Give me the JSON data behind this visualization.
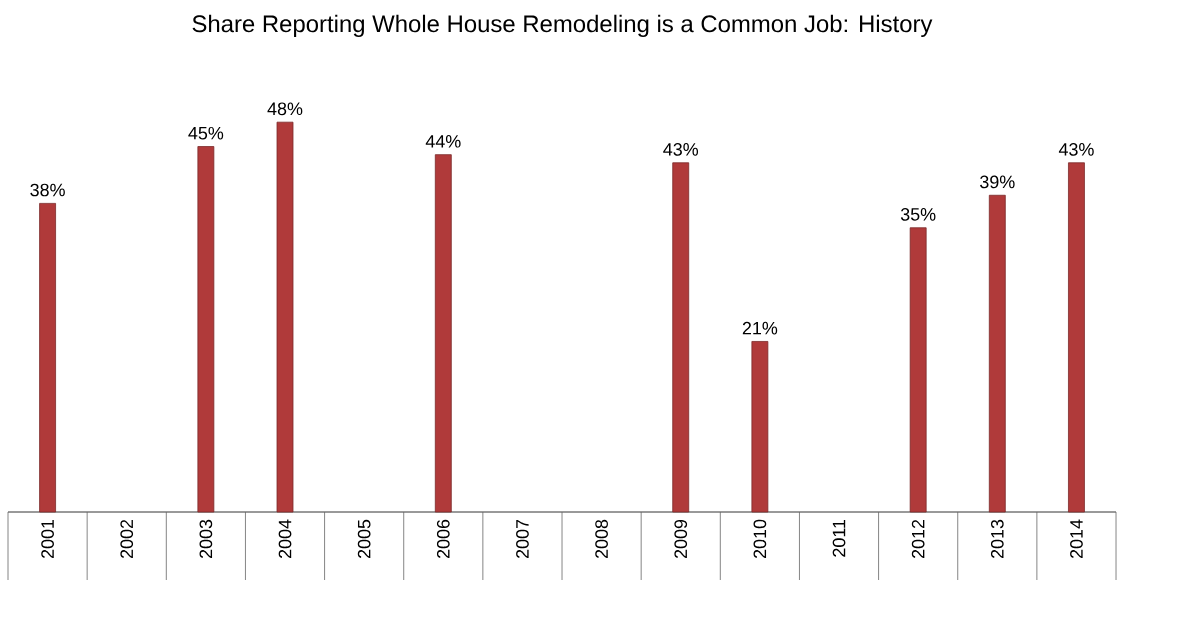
{
  "chart_data": {
    "type": "bar",
    "title": "Share Reporting Whole House Remodeling is a Common Job: History",
    "categories": [
      "2001",
      "2002",
      "2003",
      "2004",
      "2005",
      "2006",
      "2007",
      "2008",
      "2009",
      "2010",
      "2011",
      "2012",
      "2013",
      "2014"
    ],
    "values": [
      38,
      null,
      45,
      48,
      null,
      44,
      null,
      null,
      43,
      21,
      null,
      35,
      39,
      43
    ],
    "value_labels": [
      "38%",
      null,
      "45%",
      "48%",
      null,
      "44%",
      null,
      null,
      "43%",
      "21%",
      null,
      "35%",
      "39%",
      "43%"
    ],
    "color": "#b03a3a"
  }
}
